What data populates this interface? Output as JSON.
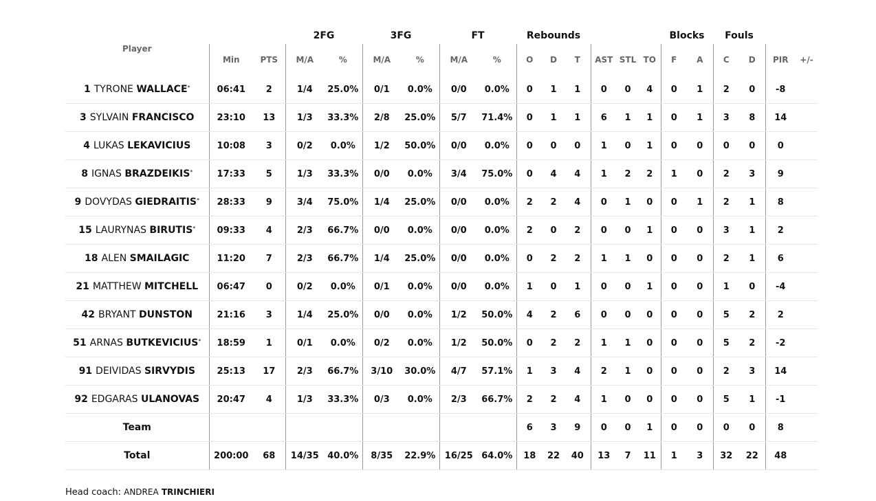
{
  "headers": {
    "groups": {
      "fg2": "2FG",
      "fg3": "3FG",
      "ft": "FT",
      "rebounds": "Rebounds",
      "blocks": "Blocks",
      "fouls": "Fouls"
    },
    "columns": {
      "player": "Player",
      "min": "Min",
      "pts": "PTS",
      "fg2_ma": "M/A",
      "fg2_pct": "%",
      "fg3_ma": "M/A",
      "fg3_pct": "%",
      "ft_ma": "M/A",
      "ft_pct": "%",
      "reb_o": "O",
      "reb_d": "D",
      "reb_t": "T",
      "ast": "AST",
      "stl": "STL",
      "to": "TO",
      "blk_f": "F",
      "blk_a": "A",
      "foul_c": "C",
      "foul_d": "D",
      "pir": "PIR",
      "plus_minus": "+/-"
    }
  },
  "players": [
    {
      "num": "1",
      "first": "TYRONE",
      "last": "WALLACE",
      "starter": "*",
      "min": "06:41",
      "pts": "2",
      "fg2_ma": "1/4",
      "fg2_pct": "25.0%",
      "fg3_ma": "0/1",
      "fg3_pct": "0.0%",
      "ft_ma": "0/0",
      "ft_pct": "0.0%",
      "reb_o": "0",
      "reb_d": "1",
      "reb_t": "1",
      "ast": "0",
      "stl": "0",
      "to": "4",
      "blk_f": "0",
      "blk_a": "1",
      "foul_c": "2",
      "foul_d": "0",
      "pir": "-8",
      "plus_minus": ""
    },
    {
      "num": "3",
      "first": "SYLVAIN",
      "last": "FRANCISCO",
      "starter": "",
      "min": "23:10",
      "pts": "13",
      "fg2_ma": "1/3",
      "fg2_pct": "33.3%",
      "fg3_ma": "2/8",
      "fg3_pct": "25.0%",
      "ft_ma": "5/7",
      "ft_pct": "71.4%",
      "reb_o": "0",
      "reb_d": "1",
      "reb_t": "1",
      "ast": "6",
      "stl": "1",
      "to": "1",
      "blk_f": "0",
      "blk_a": "1",
      "foul_c": "3",
      "foul_d": "8",
      "pir": "14",
      "plus_minus": ""
    },
    {
      "num": "4",
      "first": "LUKAS",
      "last": "LEKAVICIUS",
      "starter": "",
      "min": "10:08",
      "pts": "3",
      "fg2_ma": "0/2",
      "fg2_pct": "0.0%",
      "fg3_ma": "1/2",
      "fg3_pct": "50.0%",
      "ft_ma": "0/0",
      "ft_pct": "0.0%",
      "reb_o": "0",
      "reb_d": "0",
      "reb_t": "0",
      "ast": "1",
      "stl": "0",
      "to": "1",
      "blk_f": "0",
      "blk_a": "0",
      "foul_c": "0",
      "foul_d": "0",
      "pir": "0",
      "plus_minus": ""
    },
    {
      "num": "8",
      "first": "IGNAS",
      "last": "BRAZDEIKIS",
      "starter": "*",
      "min": "17:33",
      "pts": "5",
      "fg2_ma": "1/3",
      "fg2_pct": "33.3%",
      "fg3_ma": "0/0",
      "fg3_pct": "0.0%",
      "ft_ma": "3/4",
      "ft_pct": "75.0%",
      "reb_o": "0",
      "reb_d": "4",
      "reb_t": "4",
      "ast": "1",
      "stl": "2",
      "to": "2",
      "blk_f": "1",
      "blk_a": "0",
      "foul_c": "2",
      "foul_d": "3",
      "pir": "9",
      "plus_minus": ""
    },
    {
      "num": "9",
      "first": "DOVYDAS",
      "last": "GIEDRAITIS",
      "starter": "*",
      "min": "28:33",
      "pts": "9",
      "fg2_ma": "3/4",
      "fg2_pct": "75.0%",
      "fg3_ma": "1/4",
      "fg3_pct": "25.0%",
      "ft_ma": "0/0",
      "ft_pct": "0.0%",
      "reb_o": "2",
      "reb_d": "2",
      "reb_t": "4",
      "ast": "0",
      "stl": "1",
      "to": "0",
      "blk_f": "0",
      "blk_a": "1",
      "foul_c": "2",
      "foul_d": "1",
      "pir": "8",
      "plus_minus": ""
    },
    {
      "num": "15",
      "first": "LAURYNAS",
      "last": "BIRUTIS",
      "starter": "*",
      "min": "09:33",
      "pts": "4",
      "fg2_ma": "2/3",
      "fg2_pct": "66.7%",
      "fg3_ma": "0/0",
      "fg3_pct": "0.0%",
      "ft_ma": "0/0",
      "ft_pct": "0.0%",
      "reb_o": "2",
      "reb_d": "0",
      "reb_t": "2",
      "ast": "0",
      "stl": "0",
      "to": "1",
      "blk_f": "0",
      "blk_a": "0",
      "foul_c": "3",
      "foul_d": "1",
      "pir": "2",
      "plus_minus": ""
    },
    {
      "num": "18",
      "first": "ALEN",
      "last": "SMAILAGIC",
      "starter": "",
      "min": "11:20",
      "pts": "7",
      "fg2_ma": "2/3",
      "fg2_pct": "66.7%",
      "fg3_ma": "1/4",
      "fg3_pct": "25.0%",
      "ft_ma": "0/0",
      "ft_pct": "0.0%",
      "reb_o": "0",
      "reb_d": "2",
      "reb_t": "2",
      "ast": "1",
      "stl": "1",
      "to": "0",
      "blk_f": "0",
      "blk_a": "0",
      "foul_c": "2",
      "foul_d": "1",
      "pir": "6",
      "plus_minus": ""
    },
    {
      "num": "21",
      "first": "MATTHEW",
      "last": "MITCHELL",
      "starter": "",
      "min": "06:47",
      "pts": "0",
      "fg2_ma": "0/2",
      "fg2_pct": "0.0%",
      "fg3_ma": "0/1",
      "fg3_pct": "0.0%",
      "ft_ma": "0/0",
      "ft_pct": "0.0%",
      "reb_o": "1",
      "reb_d": "0",
      "reb_t": "1",
      "ast": "0",
      "stl": "0",
      "to": "1",
      "blk_f": "0",
      "blk_a": "0",
      "foul_c": "1",
      "foul_d": "0",
      "pir": "-4",
      "plus_minus": ""
    },
    {
      "num": "42",
      "first": "BRYANT",
      "last": "DUNSTON",
      "starter": "",
      "min": "21:16",
      "pts": "3",
      "fg2_ma": "1/4",
      "fg2_pct": "25.0%",
      "fg3_ma": "0/0",
      "fg3_pct": "0.0%",
      "ft_ma": "1/2",
      "ft_pct": "50.0%",
      "reb_o": "4",
      "reb_d": "2",
      "reb_t": "6",
      "ast": "0",
      "stl": "0",
      "to": "0",
      "blk_f": "0",
      "blk_a": "0",
      "foul_c": "5",
      "foul_d": "2",
      "pir": "2",
      "plus_minus": ""
    },
    {
      "num": "51",
      "first": "ARNAS",
      "last": "BUTKEVICIUS",
      "starter": "*",
      "min": "18:59",
      "pts": "1",
      "fg2_ma": "0/1",
      "fg2_pct": "0.0%",
      "fg3_ma": "0/2",
      "fg3_pct": "0.0%",
      "ft_ma": "1/2",
      "ft_pct": "50.0%",
      "reb_o": "0",
      "reb_d": "2",
      "reb_t": "2",
      "ast": "1",
      "stl": "1",
      "to": "0",
      "blk_f": "0",
      "blk_a": "0",
      "foul_c": "5",
      "foul_d": "2",
      "pir": "-2",
      "plus_minus": ""
    },
    {
      "num": "91",
      "first": "DEIVIDAS",
      "last": "SIRVYDIS",
      "starter": "",
      "min": "25:13",
      "pts": "17",
      "fg2_ma": "2/3",
      "fg2_pct": "66.7%",
      "fg3_ma": "3/10",
      "fg3_pct": "30.0%",
      "ft_ma": "4/7",
      "ft_pct": "57.1%",
      "reb_o": "1",
      "reb_d": "3",
      "reb_t": "4",
      "ast": "2",
      "stl": "1",
      "to": "0",
      "blk_f": "0",
      "blk_a": "0",
      "foul_c": "2",
      "foul_d": "3",
      "pir": "14",
      "plus_minus": ""
    },
    {
      "num": "92",
      "first": "EDGARAS",
      "last": "ULANOVAS",
      "starter": "",
      "min": "20:47",
      "pts": "4",
      "fg2_ma": "1/3",
      "fg2_pct": "33.3%",
      "fg3_ma": "0/3",
      "fg3_pct": "0.0%",
      "ft_ma": "2/3",
      "ft_pct": "66.7%",
      "reb_o": "2",
      "reb_d": "2",
      "reb_t": "4",
      "ast": "1",
      "stl": "0",
      "to": "0",
      "blk_f": "0",
      "blk_a": "0",
      "foul_c": "5",
      "foul_d": "1",
      "pir": "-1",
      "plus_minus": ""
    }
  ],
  "team": {
    "label": "Team",
    "min": "",
    "pts": "",
    "fg2_ma": "",
    "fg2_pct": "",
    "fg3_ma": "",
    "fg3_pct": "",
    "ft_ma": "",
    "ft_pct": "",
    "reb_o": "6",
    "reb_d": "3",
    "reb_t": "9",
    "ast": "0",
    "stl": "0",
    "to": "1",
    "blk_f": "0",
    "blk_a": "0",
    "foul_c": "0",
    "foul_d": "0",
    "pir": "8",
    "plus_minus": ""
  },
  "total": {
    "label": "Total",
    "min": "200:00",
    "pts": "68",
    "fg2_ma": "14/35",
    "fg2_pct": "40.0%",
    "fg3_ma": "8/35",
    "fg3_pct": "22.9%",
    "ft_ma": "16/25",
    "ft_pct": "64.0%",
    "reb_o": "18",
    "reb_d": "22",
    "reb_t": "40",
    "ast": "13",
    "stl": "7",
    "to": "11",
    "blk_f": "1",
    "blk_a": "3",
    "foul_c": "32",
    "foul_d": "22",
    "pir": "48",
    "plus_minus": ""
  },
  "coach": {
    "label": "Head coach:",
    "first": "ANDREA",
    "last": "TRINCHIERI"
  }
}
